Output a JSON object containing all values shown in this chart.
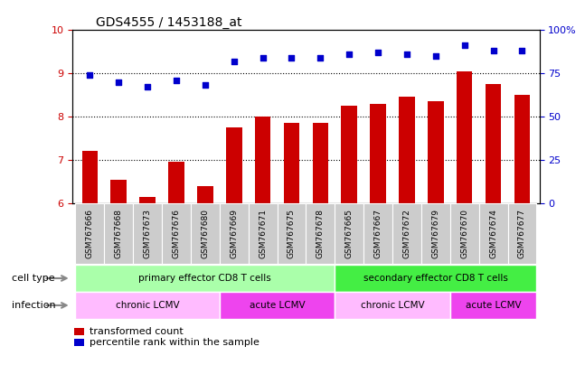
{
  "title": "GDS4555 / 1453188_at",
  "samples": [
    "GSM767666",
    "GSM767668",
    "GSM767673",
    "GSM767676",
    "GSM767680",
    "GSM767669",
    "GSM767671",
    "GSM767675",
    "GSM767678",
    "GSM767665",
    "GSM767667",
    "GSM767672",
    "GSM767679",
    "GSM767670",
    "GSM767674",
    "GSM767677"
  ],
  "transformed_count": [
    7.2,
    6.55,
    6.15,
    6.95,
    6.4,
    7.75,
    8.0,
    7.85,
    7.85,
    8.25,
    8.3,
    8.45,
    8.35,
    9.05,
    8.75,
    8.5
  ],
  "percentile_rank": [
    74,
    70,
    67,
    71,
    68,
    82,
    84,
    84,
    84,
    86,
    87,
    86,
    85,
    91,
    88,
    88
  ],
  "bar_color": "#cc0000",
  "dot_color": "#0000cc",
  "ylim_left": [
    6,
    10
  ],
  "ylim_right": [
    0,
    100
  ],
  "yticks_left": [
    6,
    7,
    8,
    9,
    10
  ],
  "yticks_right": [
    0,
    25,
    50,
    75,
    100
  ],
  "yticklabels_right": [
    "0",
    "25",
    "50",
    "75",
    "100%"
  ],
  "cell_type_labels": [
    {
      "label": "primary effector CD8 T cells",
      "start": 0,
      "end": 8,
      "color": "#aaffaa"
    },
    {
      "label": "secondary effector CD8 T cells",
      "start": 9,
      "end": 15,
      "color": "#44ee44"
    }
  ],
  "infection_labels": [
    {
      "label": "chronic LCMV",
      "start": 0,
      "end": 4,
      "color": "#ffbbff"
    },
    {
      "label": "acute LCMV",
      "start": 5,
      "end": 8,
      "color": "#ee44ee"
    },
    {
      "label": "chronic LCMV",
      "start": 9,
      "end": 12,
      "color": "#ffbbff"
    },
    {
      "label": "acute LCMV",
      "start": 13,
      "end": 15,
      "color": "#ee44ee"
    }
  ],
  "legend_bar_label": "transformed count",
  "legend_dot_label": "percentile rank within the sample",
  "cell_type_row_label": "cell type",
  "infection_row_label": "infection",
  "grid_yticks": [
    7,
    8,
    9
  ],
  "sample_box_color": "#cccccc",
  "sample_box_edgecolor": "#ffffff",
  "tick_label_color_left": "#cc0000",
  "tick_label_color_right": "#0000cc",
  "arrow_color": "#888888"
}
